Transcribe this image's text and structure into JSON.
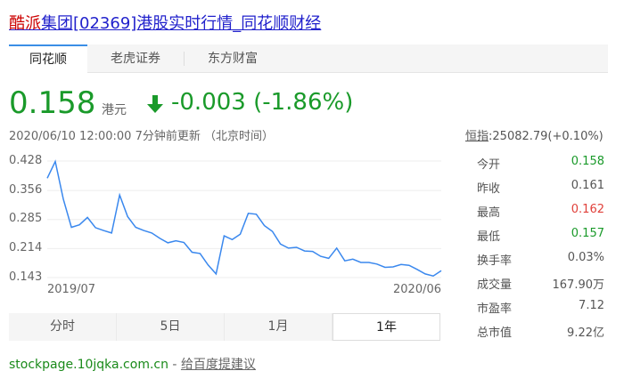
{
  "title": {
    "highlight": "酷派",
    "rest": "集团[02369]港股实时行情_同花顺财经"
  },
  "tabs": [
    {
      "label": "同花顺",
      "active": true
    },
    {
      "label": "老虎证券"
    },
    {
      "label": "东方财富"
    }
  ],
  "quote": {
    "price": "0.158",
    "unit": "港元",
    "change": "-0.003 (-1.86%)",
    "direction": "down",
    "timestamp": "2020/06/10 12:00:00  7分钟前更新 （北京时间）",
    "color_down": "#1a9a2a",
    "color_up": "#e0403a"
  },
  "index": {
    "name": "恒指",
    "value": ":25082.79(+0.10%)"
  },
  "stats": [
    {
      "label": "今开",
      "value": "0.158",
      "color": "#1a9a2a"
    },
    {
      "label": "昨收",
      "value": "0.161",
      "color": "#555555"
    },
    {
      "label": "最高",
      "value": "0.162",
      "color": "#e0403a"
    },
    {
      "label": "最低",
      "value": "0.157",
      "color": "#1a9a2a"
    },
    {
      "label": "换手率",
      "value": "0.03%",
      "color": "#555555"
    },
    {
      "label": "成交量",
      "value": "167.90万",
      "color": "#555555"
    },
    {
      "label": "市盈率",
      "value": "7.12",
      "color": "#555555"
    },
    {
      "label": "总市值",
      "value": "9.22亿",
      "color": "#555555"
    }
  ],
  "chart_data": {
    "type": "line",
    "y_ticks": [
      "0.428",
      "0.356",
      "0.285",
      "0.214",
      "0.143"
    ],
    "ylim": [
      0.143,
      0.428
    ],
    "x_ticks": [
      "2019/07",
      "2020/06"
    ],
    "grid": true,
    "line_color": "#3a88ee",
    "values": [
      0.386,
      0.427,
      0.335,
      0.266,
      0.272,
      0.29,
      0.265,
      0.258,
      0.252,
      0.345,
      0.292,
      0.266,
      0.258,
      0.252,
      0.239,
      0.228,
      0.233,
      0.229,
      0.205,
      0.202,
      0.174,
      0.152,
      0.245,
      0.236,
      0.249,
      0.3,
      0.298,
      0.27,
      0.256,
      0.225,
      0.215,
      0.217,
      0.208,
      0.207,
      0.195,
      0.19,
      0.215,
      0.184,
      0.188,
      0.18,
      0.18,
      0.176,
      0.168,
      0.169,
      0.175,
      0.173,
      0.163,
      0.152,
      0.147,
      0.16
    ]
  },
  "ranges": [
    {
      "label": "分时"
    },
    {
      "label": "5日"
    },
    {
      "label": "1月"
    },
    {
      "label": "1年",
      "active": true
    }
  ],
  "footer": {
    "url": "stockpage.10jqka.com.cn",
    "sep": " - ",
    "feedback": "给百度提建议"
  }
}
